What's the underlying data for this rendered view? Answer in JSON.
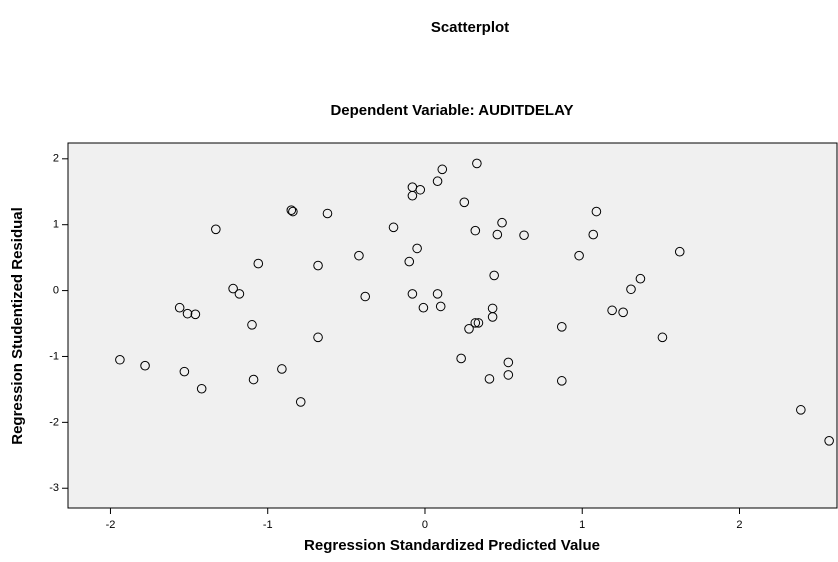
{
  "chart_data": {
    "type": "scatter",
    "title": "Scatterplot",
    "subtitle": "Dependent Variable: AUDITDELAY",
    "x_label": "Regression Standardized Predicted Value",
    "y_label": "Regression Studentized Residual",
    "x": [
      -1.94,
      -1.78,
      -1.53,
      -1.42,
      -1.56,
      -1.51,
      -1.46,
      -1.33,
      -1.22,
      -1.18,
      -1.1,
      -1.06,
      -1.09,
      -0.91,
      -0.85,
      -0.84,
      -0.79,
      -0.68,
      -0.68,
      -0.62,
      -0.42,
      -0.38,
      -0.2,
      -0.1,
      -0.08,
      -0.08,
      -0.08,
      -0.05,
      -0.03,
      -0.01,
      0.08,
      0.11,
      0.08,
      0.1,
      0.25,
      0.23,
      0.28,
      0.32,
      0.34,
      0.32,
      0.33,
      0.41,
      0.43,
      0.43,
      0.44,
      0.46,
      0.49,
      0.53,
      0.53,
      0.63,
      0.87,
      0.87,
      0.98,
      1.07,
      1.09,
      1.19,
      1.26,
      1.31,
      1.37,
      1.51,
      1.62,
      2.39,
      2.57
    ],
    "values": [
      -1.05,
      -1.14,
      -1.23,
      -1.49,
      -0.26,
      -0.35,
      -0.36,
      0.93,
      0.03,
      -0.05,
      -0.52,
      0.41,
      -1.35,
      -1.19,
      1.22,
      1.2,
      -1.69,
      -0.71,
      0.38,
      1.17,
      0.53,
      -0.09,
      0.96,
      0.44,
      1.57,
      1.44,
      -0.05,
      0.64,
      1.53,
      -0.26,
      1.66,
      1.84,
      -0.05,
      -0.24,
      1.34,
      -1.03,
      -0.58,
      -0.49,
      -0.49,
      0.91,
      1.93,
      -1.34,
      -0.4,
      -0.27,
      0.23,
      0.85,
      1.03,
      -1.09,
      -1.28,
      0.84,
      -0.55,
      -1.37,
      0.53,
      0.85,
      1.2,
      -0.3,
      -0.33,
      0.02,
      0.18,
      -0.71,
      0.59,
      -1.81,
      -2.28
    ],
    "color": "#000000",
    "background": "#f0f0f0",
    "xlim": [
      -2.27,
      2.62
    ],
    "ylim": [
      -3.3,
      2.24
    ],
    "xticks": [
      -2,
      -1,
      0,
      1,
      2
    ],
    "yticks": [
      -3,
      -2,
      -1,
      0,
      1,
      2
    ]
  }
}
